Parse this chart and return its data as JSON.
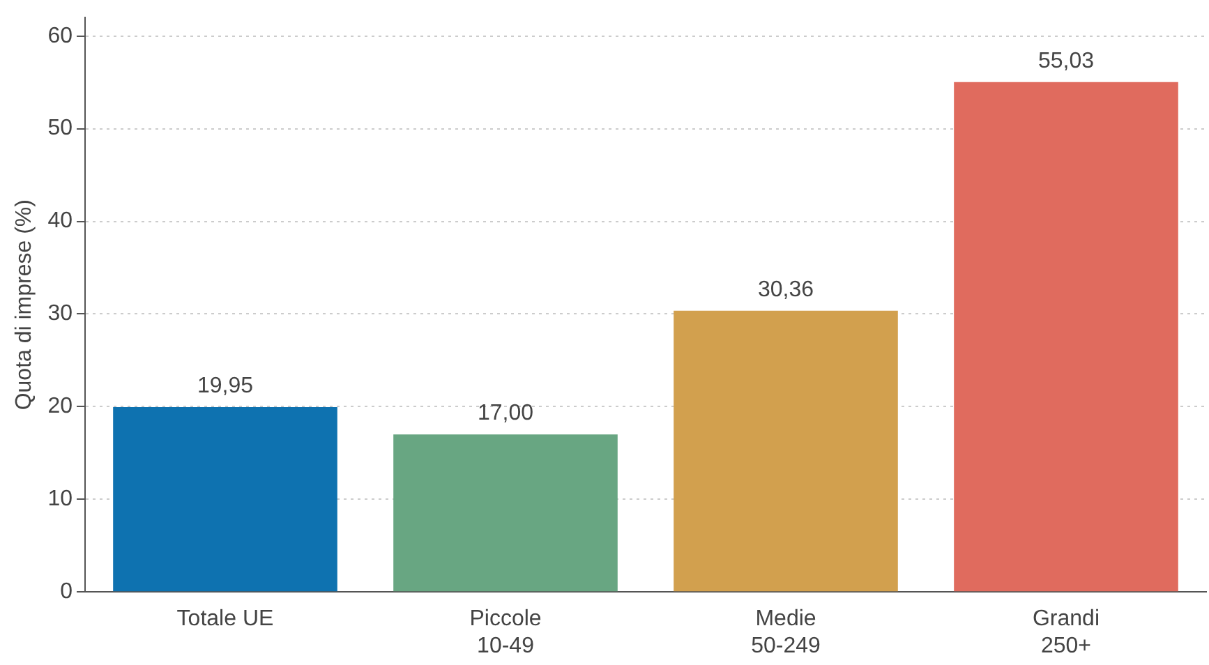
{
  "chart_data": {
    "type": "bar",
    "ylabel": "Quota di imprese (%)",
    "categories": [
      "Totale UE",
      "Piccole\n10-49",
      "Medie\n50-249",
      "Grandi\n250+"
    ],
    "values": [
      19.95,
      17.0,
      30.36,
      55.03
    ],
    "colors": [
      "#0e72b0",
      "#68a682",
      "#d2a04e",
      "#e06b5e"
    ],
    "value_labels": [
      "19,95",
      "17,00",
      "30,36",
      "55,03"
    ],
    "ylim": [
      0,
      62
    ],
    "yticks": [
      0,
      10,
      20,
      30,
      40,
      50,
      60
    ],
    "grid": "y",
    "legend": false
  }
}
